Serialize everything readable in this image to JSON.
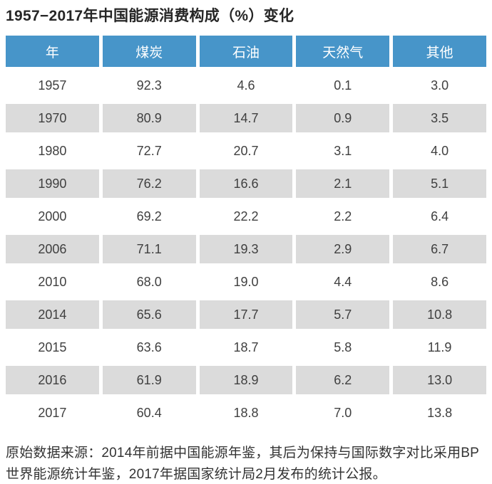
{
  "title": "1957−2017年中国能源消费构成（%）变化",
  "table": {
    "headers": [
      "年",
      "煤炭",
      "石油",
      "天然气",
      "其他"
    ],
    "rows": [
      [
        "1957",
        "92.3",
        "4.6",
        "0.1",
        "3.0"
      ],
      [
        "1970",
        "80.9",
        "14.7",
        "0.9",
        "3.5"
      ],
      [
        "1980",
        "72.7",
        "20.7",
        "3.1",
        "4.0"
      ],
      [
        "1990",
        "76.2",
        "16.6",
        "2.1",
        "5.1"
      ],
      [
        "2000",
        "69.2",
        "22.2",
        "2.2",
        "6.4"
      ],
      [
        "2006",
        "71.1",
        "19.3",
        "2.9",
        "6.7"
      ],
      [
        "2010",
        "68.0",
        "19.0",
        "4.4",
        "8.6"
      ],
      [
        "2014",
        "65.6",
        "17.7",
        "5.7",
        "10.8"
      ],
      [
        "2015",
        "63.6",
        "18.7",
        "5.8",
        "11.9"
      ],
      [
        "2016",
        "61.9",
        "18.9",
        "6.2",
        "13.0"
      ],
      [
        "2017",
        "60.4",
        "18.8",
        "7.0",
        "13.8"
      ]
    ]
  },
  "footnote": "原始数据来源：2014年前据中国能源年鉴，其后为保持与国际数字对比采用BP世界能源统计年鉴，2017年据国家统计局2月发布的统计公报。",
  "colors": {
    "header_bg": "#4795c9",
    "header_text": "#ffffff",
    "row_alt_bg": "#dbdbdb",
    "row_bg": "#ffffff",
    "body_text": "#404040",
    "title_text": "#262626",
    "note_text": "#333333"
  },
  "chart_data": {
    "type": "table",
    "title": "1957−2017年中国能源消费构成（%）变化",
    "columns": [
      "年",
      "煤炭",
      "石油",
      "天然气",
      "其他"
    ],
    "unit": "%",
    "rows": [
      [
        1957,
        92.3,
        4.6,
        0.1,
        3.0
      ],
      [
        1970,
        80.9,
        14.7,
        0.9,
        3.5
      ],
      [
        1980,
        72.7,
        20.7,
        3.1,
        4.0
      ],
      [
        1990,
        76.2,
        16.6,
        2.1,
        5.1
      ],
      [
        2000,
        69.2,
        22.2,
        2.2,
        6.4
      ],
      [
        2006,
        71.1,
        19.3,
        2.9,
        6.7
      ],
      [
        2010,
        68.0,
        19.0,
        4.4,
        8.6
      ],
      [
        2014,
        65.6,
        17.7,
        5.7,
        10.8
      ],
      [
        2015,
        63.6,
        18.7,
        5.8,
        11.9
      ],
      [
        2016,
        61.9,
        18.9,
        6.2,
        13.0
      ],
      [
        2017,
        60.4,
        18.8,
        7.0,
        13.8
      ]
    ],
    "note": "原始数据来源：2014年前据中国能源年鉴，其后为保持与国际数字对比采用BP世界能源统计年鉴，2017年据国家统计局2月发布的统计公报。"
  }
}
